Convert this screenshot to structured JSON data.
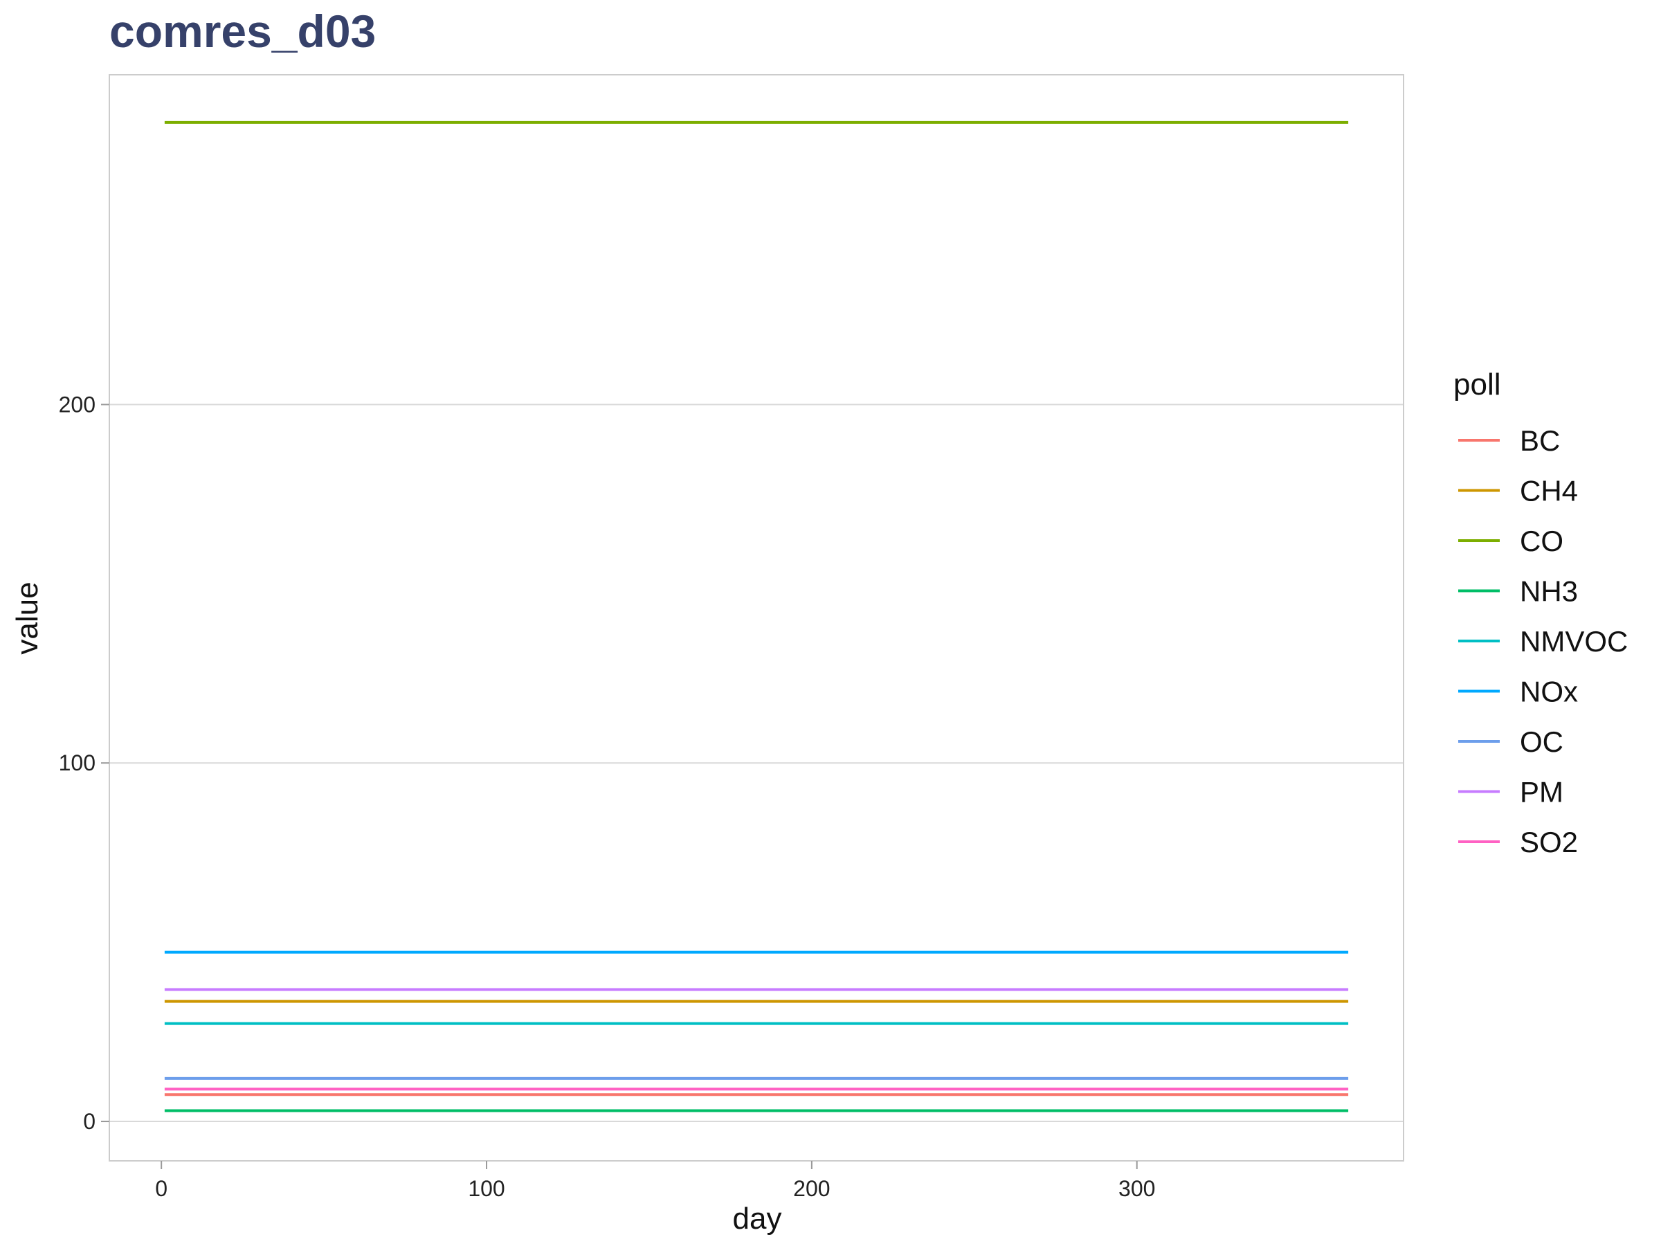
{
  "chart_data": {
    "type": "line",
    "title": "comres_d03",
    "xlabel": "day",
    "ylabel": "value",
    "xlim": [
      -16,
      382
    ],
    "ylim": [
      -11,
      292
    ],
    "x_ticks": [
      0,
      100,
      200,
      300
    ],
    "y_ticks": [
      0,
      100,
      200
    ],
    "x_range": [
      1,
      365
    ],
    "grid": "horizontal major",
    "legend": {
      "title": "poll",
      "position": "right"
    },
    "series": [
      {
        "name": "BC",
        "color": "#F8766D",
        "value": 7.5
      },
      {
        "name": "CH4",
        "color": "#CD9600",
        "value": 33.5
      },
      {
        "name": "CO",
        "color": "#7CAE00",
        "value": 278.7
      },
      {
        "name": "NH3",
        "color": "#00BE67",
        "value": 3.0
      },
      {
        "name": "NMVOC",
        "color": "#00BFC4",
        "value": 27.3
      },
      {
        "name": "NOx",
        "color": "#00A9FF",
        "value": 47.2
      },
      {
        "name": "OC",
        "color": "#6D9EEB",
        "value": 12.0
      },
      {
        "name": "PM",
        "color": "#C77CFF",
        "value": 36.8
      },
      {
        "name": "SO2",
        "color": "#FF61C3",
        "value": 9.0
      }
    ],
    "colors": {
      "title": "#36416A",
      "grid": "#D9D9D9",
      "panel_border": "#CCCCCC"
    }
  }
}
